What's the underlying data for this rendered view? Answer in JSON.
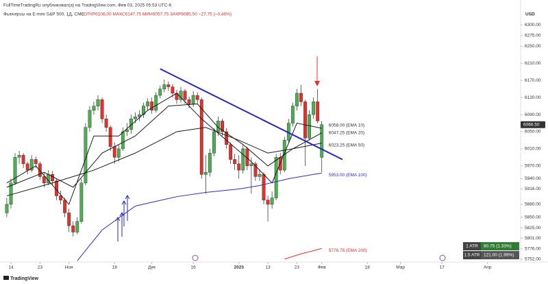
{
  "chart_data": {
    "type": "candlestick",
    "header": "FullTimeTradingRu опубликовал(а) на TradingView.com, Фев 03, 2025 05:53 UTC-6",
    "title": "Фьючерсы на E-mini S&P 500, 1Д, CME",
    "ohlc_text": "ОТКР6106,00  МАКС6147,75  МИН6057,75  ЗАКР6085,50  −27,75 (−0,46%)",
    "currency": "USD",
    "brand": "TradingView",
    "x": [
      -1,
      0,
      1,
      2,
      3,
      4,
      5,
      6,
      7,
      8,
      9,
      10,
      11,
      12,
      13,
      14,
      15,
      16,
      17,
      18,
      19,
      20,
      21,
      22,
      23,
      24,
      25,
      26,
      27,
      28,
      29,
      30,
      31,
      32,
      33,
      34,
      35,
      36,
      37,
      38,
      39,
      40,
      41,
      42,
      43,
      44,
      45,
      46,
      47,
      48,
      49,
      50,
      51,
      52,
      53,
      54,
      55,
      56,
      57,
      58,
      59,
      60,
      61,
      62,
      63,
      64,
      65,
      66,
      67,
      68,
      69,
      70,
      71,
      72,
      73,
      74,
      75
    ],
    "open": [
      5860,
      5880,
      5930,
      5990,
      5995,
      5975,
      5960,
      5985,
      5975,
      5945,
      5930,
      5950,
      5935,
      5900,
      5890,
      5860,
      5830,
      5815,
      5840,
      5930,
      6060,
      6100,
      6110,
      6125,
      6080,
      6060,
      6015,
      5990,
      6010,
      6050,
      6055,
      6080,
      6085,
      6090,
      6110,
      6120,
      6100,
      6135,
      6150,
      6160,
      6155,
      6140,
      6125,
      6145,
      6125,
      6115,
      6135,
      6125,
      5950,
      5955,
      6000,
      6050,
      6075,
      6050,
      6020,
      5985,
      5975,
      5960,
      6010,
      5970,
      5975,
      5945,
      5950,
      5890,
      5880,
      5895,
      5990,
      5960,
      6030,
      6070,
      6110,
      6140,
      6120,
      6035,
      6090,
      6120,
      5990
    ],
    "high": [
      5895,
      5940,
      6000,
      6005,
      6000,
      5980,
      5995,
      5992,
      5980,
      5955,
      5960,
      5958,
      5940,
      5912,
      5895,
      5870,
      5840,
      5850,
      5940,
      6070,
      6110,
      6120,
      6135,
      6130,
      6090,
      6065,
      6025,
      6020,
      6060,
      6070,
      6090,
      6095,
      6100,
      6118,
      6128,
      6130,
      6142,
      6158,
      6172,
      6168,
      6162,
      6148,
      6155,
      6150,
      6132,
      6145,
      6142,
      6130,
      5995,
      6010,
      6058,
      6085,
      6080,
      6058,
      6025,
      5998,
      5995,
      6020,
      6015,
      5990,
      5980,
      5962,
      5955,
      5900,
      5910,
      5998,
      6000,
      6038,
      6080,
      6118,
      6150,
      6160,
      6125,
      6100,
      6130,
      6150,
      6075
    ],
    "low": [
      5850,
      5870,
      5925,
      5975,
      5965,
      5950,
      5955,
      5965,
      5938,
      5920,
      5925,
      5925,
      5890,
      5880,
      5850,
      5815,
      5805,
      5810,
      5835,
      5925,
      6050,
      6090,
      6100,
      6070,
      6050,
      6005,
      5975,
      5980,
      6005,
      6040,
      6045,
      6070,
      6075,
      6082,
      6100,
      6092,
      6095,
      6128,
      6142,
      6145,
      6130,
      6115,
      6118,
      6115,
      6105,
      6108,
      6115,
      5940,
      5905,
      5945,
      5992,
      6040,
      6040,
      6010,
      5975,
      5960,
      5940,
      5952,
      5960,
      5905,
      5935,
      5935,
      5880,
      5840,
      5870,
      5890,
      5950,
      5955,
      6022,
      6062,
      6100,
      6110,
      5970,
      6030,
      6080,
      6070,
      5955
    ],
    "close": [
      5880,
      5930,
      5990,
      5995,
      5975,
      5960,
      5985,
      5975,
      5945,
      5930,
      5950,
      5935,
      5900,
      5890,
      5860,
      5830,
      5815,
      5840,
      5930,
      6060,
      6100,
      6110,
      6125,
      6080,
      6060,
      6015,
      5990,
      6010,
      6050,
      6055,
      6080,
      6085,
      6090,
      6110,
      6120,
      6100,
      6135,
      6150,
      6160,
      6155,
      6140,
      6125,
      6145,
      6125,
      6115,
      6135,
      6125,
      5950,
      5955,
      6000,
      6050,
      6075,
      6050,
      6020,
      5985,
      5975,
      5960,
      6010,
      5970,
      5975,
      5945,
      5950,
      5890,
      5880,
      5895,
      5990,
      5960,
      6030,
      6070,
      6110,
      6140,
      6120,
      6035,
      6090,
      6120,
      6075,
      6066.5
    ],
    "up_color": "#4caf50",
    "down_color": "#e8302a",
    "emas": [
      {
        "label": "6058.00 (EMA 10)",
        "color": "#1a1a1a",
        "x": [
          -1,
          6,
          14,
          20,
          26,
          33,
          40,
          46,
          52,
          58,
          63,
          69,
          75
        ],
        "values": [
          5930,
          5970,
          5880,
          6040,
          6040,
          6100,
          6140,
          6080,
          6030,
          5980,
          5930,
          6070,
          6058
        ]
      },
      {
        "label": "6047.25 (EMA 20)",
        "color": "#1a1a1a",
        "x": [
          -1,
          8,
          15,
          22,
          30,
          38,
          45,
          50,
          56,
          62,
          68,
          75
        ],
        "values": [
          5920,
          5955,
          5920,
          6000,
          6040,
          6110,
          6115,
          6060,
          6020,
          5970,
          6010,
          6047.25
        ]
      },
      {
        "label": "6023.25 (EMA 50)",
        "color": "#1a1a1a",
        "x": [
          -1,
          10,
          20,
          30,
          40,
          47,
          55,
          62,
          68,
          75
        ],
        "values": [
          5900,
          5930,
          5960,
          6000,
          6050,
          6060,
          6030,
          6000,
          6010,
          6023.25
        ]
      },
      {
        "label": "5953.00 (EMA 100)",
        "color": "#2a2ad0",
        "x": [
          16,
          22,
          30,
          40,
          47,
          55,
          60,
          67,
          73,
          75
        ],
        "values": [
          5748,
          5820,
          5876,
          5898,
          5908,
          5916,
          5924,
          5940,
          5950,
          5953
        ]
      },
      {
        "label": "5776.75 (EMA 200)",
        "color": "#e8302a",
        "x": [
          66,
          70,
          75
        ],
        "values": [
          5752,
          5764,
          5776.75
        ]
      }
    ],
    "trendline": {
      "color": "#2222cc",
      "x": [
        36,
        80
      ],
      "y": [
        6197,
        5985
      ]
    },
    "last_price": {
      "value": 6066.5,
      "label": "6066.50"
    },
    "atr": [
      {
        "name": "1 ATR",
        "text": "80.75 (1.33%)"
      },
      {
        "name": "1.5 ATR",
        "text": "121.00 (1.99%)"
      }
    ],
    "xlim": [
      -2.64,
      122.98
    ],
    "xticks": [
      {
        "value": 0,
        "label": "14"
      },
      {
        "value": 7,
        "label": "23"
      },
      {
        "value": 14,
        "label": "Ноя"
      },
      {
        "value": 25,
        "label": "18"
      },
      {
        "value": 34,
        "label": "Дек"
      },
      {
        "value": 44,
        "label": "16"
      },
      {
        "value": 55,
        "label": "2025"
      },
      {
        "value": 62,
        "label": "13"
      },
      {
        "value": 69,
        "label": "23"
      },
      {
        "value": 75,
        "label": "Фев"
      },
      {
        "value": 86,
        "label": "18"
      },
      {
        "value": 94,
        "label": "Мар"
      },
      {
        "value": 104,
        "label": "17"
      },
      {
        "value": 115,
        "label": "Апр"
      }
    ],
    "ylim": [
      5745,
      6310
    ],
    "yticks": [
      {
        "value": 6300,
        "label": "6300.00"
      },
      {
        "value": 6275,
        "label": "6275.00"
      },
      {
        "value": 6250,
        "label": "6250.00"
      },
      {
        "value": 6210,
        "label": "6210.00"
      },
      {
        "value": 6170,
        "label": "6170.00"
      },
      {
        "value": 6130,
        "label": "6130.00"
      },
      {
        "value": 6090,
        "label": "6090.00"
      },
      {
        "value": 6050,
        "label": "6050.00"
      },
      {
        "value": 6010,
        "label": "6010.00"
      },
      {
        "value": 5970,
        "label": "5970.00"
      },
      {
        "value": 5940,
        "label": "5940.00"
      },
      {
        "value": 5916,
        "label": "5916.00"
      },
      {
        "value": 5880,
        "label": "5880.00"
      },
      {
        "value": 5850,
        "label": "5850.00"
      },
      {
        "value": 5825,
        "label": "5825.00"
      },
      {
        "value": 5801,
        "label": "5801.00"
      },
      {
        "value": 5776,
        "label": "5776.00"
      },
      {
        "value": 5752,
        "label": "5752.00"
      }
    ],
    "grid": false
  }
}
